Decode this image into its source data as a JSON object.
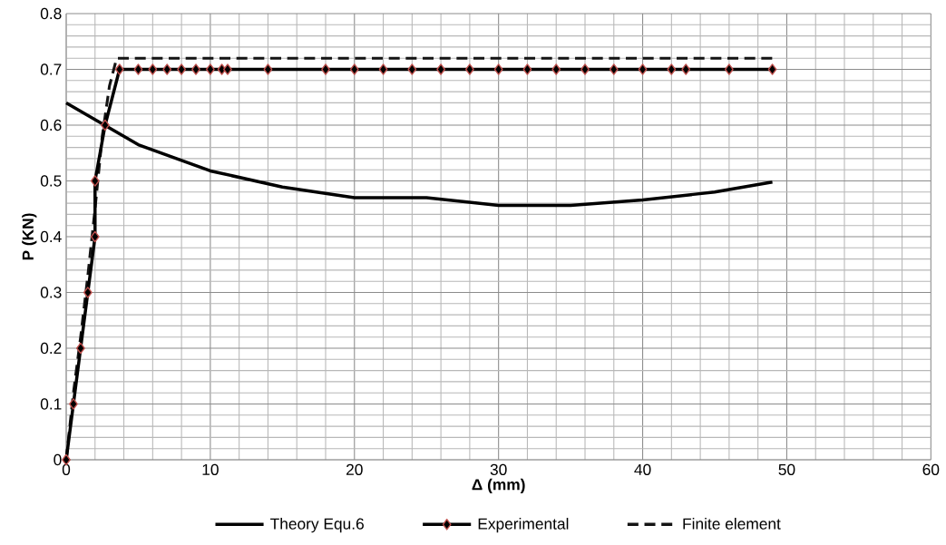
{
  "chart_data": {
    "type": "line",
    "xlabel": "Δ (mm)",
    "ylabel": "P (KN)",
    "xlim": [
      0,
      60
    ],
    "xticks": [
      0,
      10,
      20,
      30,
      40,
      50,
      60
    ],
    "ylim": [
      0,
      0.8
    ],
    "yticks": [
      {
        "value": 0,
        "label": "0"
      },
      0.1,
      0.2,
      0.3,
      0.4,
      0.5,
      0.6,
      0.7,
      0.8
    ],
    "grid": true,
    "legend": "bottom",
    "series": [
      {
        "name": "Theory Equ.6",
        "color": "#000000",
        "line_style": "solid",
        "marker": "none",
        "x": [
          0,
          5,
          10,
          15,
          20,
          25,
          30,
          35,
          40,
          45,
          49
        ],
        "values": [
          0.64,
          0.565,
          0.518,
          0.489,
          0.47,
          0.47,
          0.456,
          0.456,
          0.466,
          0.48,
          0.498
        ]
      },
      {
        "name": "Experimental",
        "color": "#000000",
        "line_style": "solid",
        "marker": "diamond",
        "x": [
          0,
          0.5,
          1,
          1.5,
          2,
          2,
          2.7,
          3.7,
          5,
          6,
          7,
          8,
          9,
          10,
          10.8,
          11.2,
          14,
          18,
          20,
          22,
          24,
          26,
          28,
          30,
          32,
          34,
          36,
          38,
          40,
          42,
          43,
          46,
          49
        ],
        "values": [
          0,
          0.1,
          0.2,
          0.3,
          0.4,
          0.5,
          0.6,
          0.7,
          0.7,
          0.7,
          0.7,
          0.7,
          0.7,
          0.7,
          0.7,
          0.7,
          0.7,
          0.7,
          0.7,
          0.7,
          0.7,
          0.7,
          0.7,
          0.7,
          0.7,
          0.7,
          0.7,
          0.7,
          0.7,
          0.7,
          0.7,
          0.7,
          0.7
        ]
      },
      {
        "name": "Finite element",
        "color": "#141414",
        "line_style": "dashed",
        "marker": "none",
        "x": [
          0,
          0.5,
          1,
          1.5,
          2,
          2.5,
          3,
          3.5,
          49
        ],
        "values": [
          0,
          0.12,
          0.22,
          0.33,
          0.45,
          0.58,
          0.67,
          0.72,
          0.72
        ]
      }
    ]
  }
}
